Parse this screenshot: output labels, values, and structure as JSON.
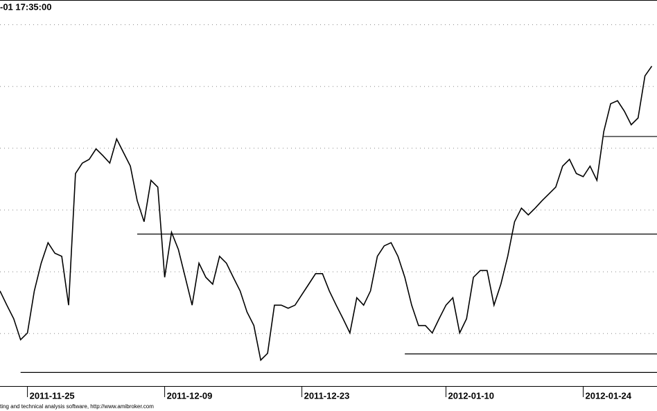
{
  "chart_data": {
    "type": "line",
    "title": "-01 17:35:00",
    "footer": "ting and technical analysis software, http://www.amibroker.com",
    "categories": [
      null,
      null,
      null,
      null,
      "2011-11-25",
      null,
      null,
      null,
      null,
      null,
      null,
      null,
      null,
      null,
      null,
      null,
      null,
      null,
      null,
      null,
      null,
      null,
      null,
      null,
      "2011-12-09",
      null,
      null,
      null,
      null,
      null,
      null,
      null,
      null,
      null,
      null,
      null,
      null,
      null,
      null,
      null,
      null,
      null,
      null,
      null,
      "2011-12-23",
      null,
      null,
      null,
      null,
      null,
      null,
      null,
      null,
      null,
      null,
      null,
      null,
      null,
      null,
      null,
      null,
      null,
      null,
      null,
      null,
      "2012-01-10",
      null,
      null,
      null,
      null,
      null,
      null,
      null,
      null,
      null,
      null,
      null,
      null,
      null,
      null,
      null,
      null,
      null,
      null,
      null,
      "2012-01-24",
      null,
      null,
      null,
      null,
      null,
      null,
      null,
      null,
      null,
      null
    ],
    "series": [
      {
        "color": "#000000",
        "values": [
          1.54,
          1.31,
          1.09,
          0.75,
          0.86,
          1.54,
          1.99,
          2.32,
          2.15,
          2.1,
          1.31,
          3.44,
          3.61,
          3.67,
          3.84,
          3.73,
          3.61,
          4.0,
          3.78,
          3.56,
          3.0,
          2.66,
          3.33,
          3.22,
          1.76,
          2.49,
          2.21,
          1.76,
          1.31,
          1.99,
          1.76,
          1.65,
          2.1,
          1.99,
          1.76,
          1.54,
          1.2,
          0.98,
          0.42,
          0.53,
          1.31,
          1.31,
          1.26,
          1.31,
          1.48,
          1.65,
          1.82,
          1.82,
          1.54,
          1.31,
          1.09,
          0.86,
          1.43,
          1.31,
          1.54,
          2.1,
          2.27,
          2.32,
          2.1,
          1.76,
          1.31,
          0.98,
          0.98,
          0.86,
          1.09,
          1.31,
          1.43,
          0.86,
          1.09,
          1.76,
          1.87,
          1.87,
          1.31,
          1.65,
          2.1,
          2.66,
          2.88,
          2.77,
          2.88,
          3.0,
          3.11,
          3.22,
          3.56,
          3.67,
          3.44,
          3.39,
          3.56,
          3.33,
          4.12,
          4.57,
          4.62,
          4.45,
          4.23,
          4.34,
          5.02,
          5.18
        ]
      }
    ],
    "hlines": [
      {
        "value": 0.22,
        "start": 3
      },
      {
        "value": 2.46,
        "start": 20
      },
      {
        "value": 0.52,
        "start": 59
      },
      {
        "value": 4.04,
        "start": 88
      }
    ],
    "ylim": [
      0,
      6.25
    ],
    "yticks": [
      0.85,
      1.85,
      2.85,
      3.85,
      4.85,
      5.85
    ],
    "grid": true
  }
}
